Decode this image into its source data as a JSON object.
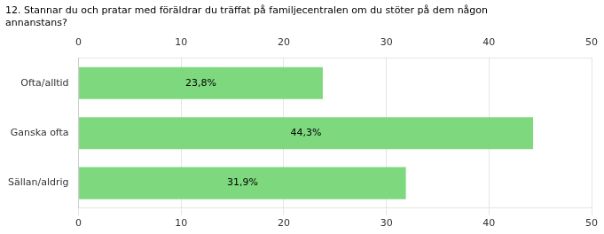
{
  "chart_data": {
    "type": "bar",
    "orientation": "horizontal",
    "title": "12. Stannar du och pratar med föräldrar du träffat på familjecentralen om du stöter på dem någon\nannanstans?",
    "categories": [
      "Ofta/alltid",
      "Ganska ofta",
      "Sällan/aldrig"
    ],
    "values": [
      23.8,
      44.3,
      31.9
    ],
    "value_labels": [
      "23,8%",
      "44,3%",
      "31,9%"
    ],
    "data_labels": true,
    "color": "#7ED87E",
    "xlim": [
      0,
      50
    ],
    "xticks": [
      0,
      10,
      20,
      30,
      40,
      50
    ],
    "grid": true
  }
}
